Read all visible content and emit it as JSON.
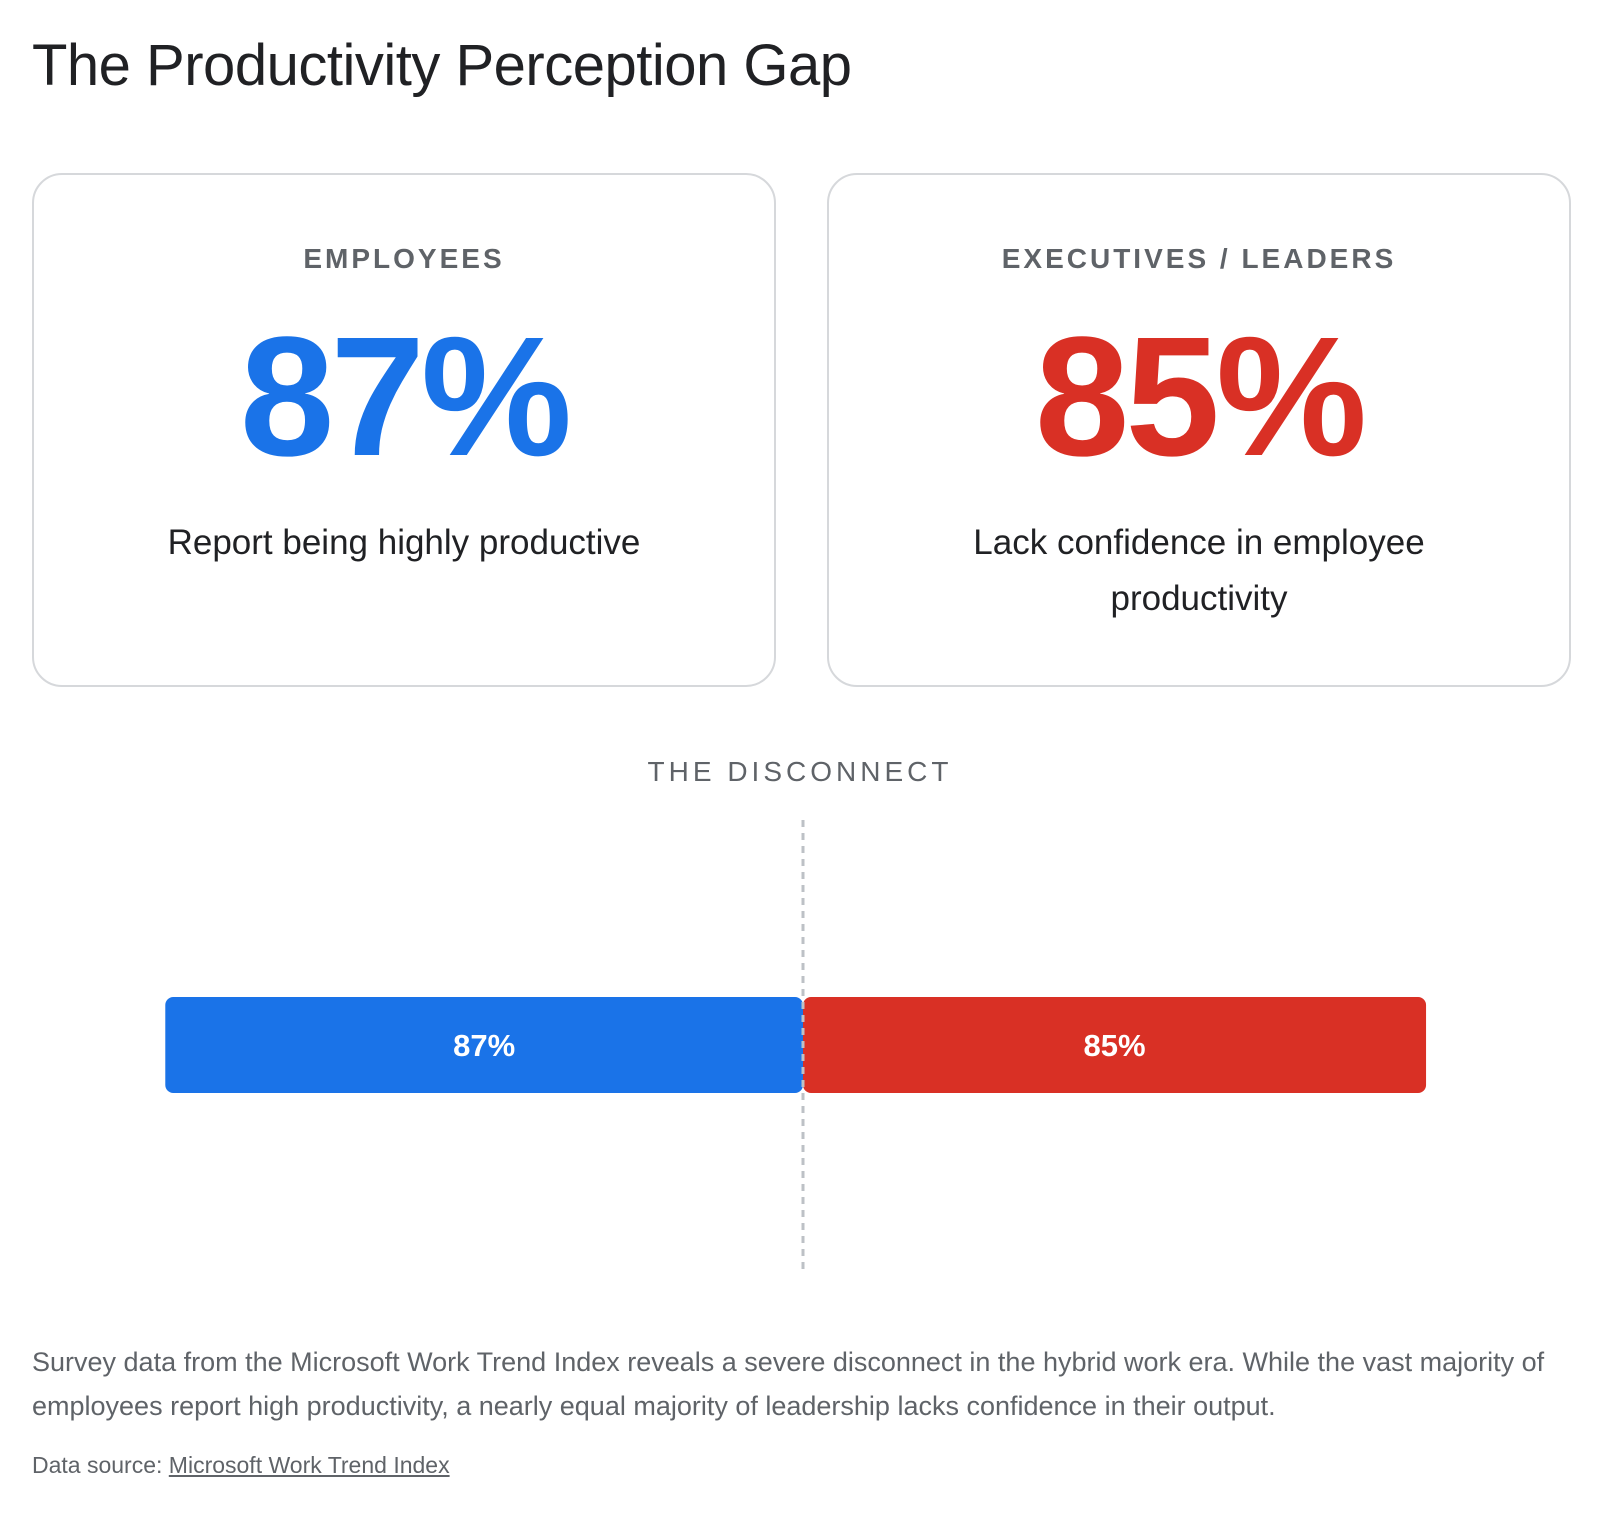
{
  "title": "The Productivity Perception Gap",
  "cards": [
    {
      "label": "EMPLOYEES",
      "value": "87%",
      "description": "Report being highly productive",
      "color": "#1a73e8"
    },
    {
      "label": "EXECUTIVES / LEADERS",
      "value": "85%",
      "description": "Lack confidence in employee productivity",
      "color": "#d93025"
    }
  ],
  "section_label": "THE DISCONNECT",
  "chart_data": {
    "type": "bar",
    "orientation": "horizontal-diverging",
    "series": [
      {
        "value": 87,
        "label": "87%",
        "color": "#1a73e8",
        "direction": "left"
      },
      {
        "value": 85,
        "label": "85%",
        "color": "#d93025",
        "direction": "right"
      }
    ],
    "divider": "dashed",
    "grid": false
  },
  "caption": "Survey data from the Microsoft Work Trend Index reveals a severe disconnect in the hybrid work era. While the vast majority of employees report high productivity, a nearly equal majority of leadership lacks confidence in their output.",
  "source": {
    "prefix": "Data source: ",
    "link_text": "Microsoft Work Trend Index"
  }
}
